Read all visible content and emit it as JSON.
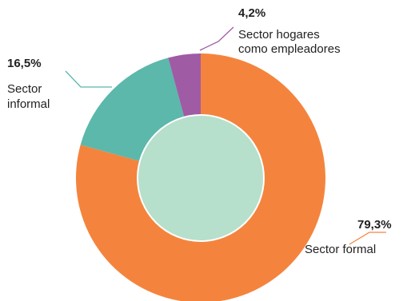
{
  "chart_data": {
    "type": "pie",
    "variant": "donut",
    "slices": [
      {
        "name": "Sector formal",
        "name_lines": [
          "Sector formal"
        ],
        "value": 79.3,
        "value_label": "79,3%",
        "color": "#F4843D"
      },
      {
        "name": "Sector informal",
        "name_lines": [
          "Sector",
          "informal"
        ],
        "value": 16.5,
        "value_label": "16,5%",
        "color": "#5BB8AA"
      },
      {
        "name": "Sector hogares como empleadores",
        "name_lines": [
          "Sector hogares",
          "como empleadores"
        ],
        "value": 4.2,
        "value_label": "4,2%",
        "color": "#A05BA5"
      }
    ],
    "center_color": "#B6DFCC",
    "leader_line_colors": [
      "#F4843D",
      "#5BB8AA",
      "#A05BA5"
    ]
  }
}
